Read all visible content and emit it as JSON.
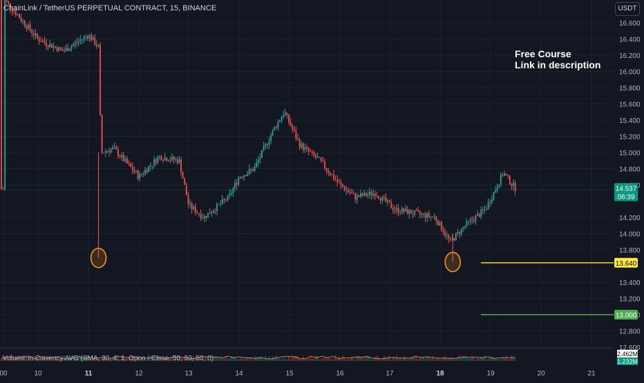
{
  "header": {
    "title": "ChainLink / TetherUS PERPETUAL CONTRACT, 15, BINANCE",
    "currency": "USDT"
  },
  "annotation": {
    "line1": "Free Course",
    "line2": "Link in description"
  },
  "volume_panel": {
    "label": "Volume in Currency AVG (SMA, 30, 4, 1, Open / Close, 50, 50, 50, 0)",
    "value_1": "2.462M",
    "value_2": "1.232M"
  },
  "colors": {
    "background": "#131722",
    "up": "#26a69a",
    "down": "#ef5350",
    "grid": "#1e222d",
    "axis_text": "#b2b5be",
    "level_yellow": "#ffeb3b",
    "level_green": "#4caf50",
    "circle": "#f7931a",
    "price_tag": "#089981"
  },
  "chart_data": {
    "type": "candlestick",
    "symbol": "LINKUSDT.P",
    "timeframe": "15",
    "y_ticks": [
      "16.600",
      "16.400",
      "16.200",
      "16.000",
      "15.800",
      "15.600",
      "15.400",
      "15.200",
      "15.000",
      "14.800",
      "14.600",
      "14.200",
      "14.000",
      "13.800",
      "13.400",
      "13.200",
      "13.000",
      "12.800",
      "12.600"
    ],
    "ylim": [
      12.6,
      16.8
    ],
    "x_ticks": [
      "00",
      "10",
      "11",
      "12",
      "13",
      "14",
      "15",
      "16",
      "17",
      "18",
      "19",
      "20",
      "21"
    ],
    "x_ticks_bold": [
      "11",
      "18"
    ],
    "last_price": "14.537",
    "countdown": "06:39",
    "horizontal_levels": [
      {
        "price": 13.64,
        "label": "13.640",
        "color": "#ffeb3b"
      },
      {
        "price": 13.0,
        "label": "13.000",
        "color": "#4caf50"
      }
    ],
    "highlighted_lows": [
      {
        "date": "11",
        "price": 13.7
      },
      {
        "date": "18",
        "price": 13.65
      }
    ],
    "price_path": [
      [
        "00",
        16.9
      ],
      [
        "10",
        16.4
      ],
      [
        "10.5",
        16.25
      ],
      [
        "11",
        16.45
      ],
      [
        "11.2",
        16.3
      ],
      [
        "11.25",
        15.0
      ],
      [
        "11.5",
        15.05
      ],
      [
        "12",
        14.7
      ],
      [
        "12.4",
        14.95
      ],
      [
        "12.8",
        14.9
      ],
      [
        "13",
        14.35
      ],
      [
        "13.3",
        14.2
      ],
      [
        "13.8",
        14.45
      ],
      [
        "14",
        14.7
      ],
      [
        "14.3",
        14.8
      ],
      [
        "14.7",
        15.3
      ],
      [
        "14.9",
        15.5
      ],
      [
        "15.2",
        15.1
      ],
      [
        "15.6",
        14.9
      ],
      [
        "16",
        14.6
      ],
      [
        "16.3",
        14.45
      ],
      [
        "16.7",
        14.5
      ],
      [
        "17.1",
        14.3
      ],
      [
        "17.5",
        14.25
      ],
      [
        "17.9",
        14.2
      ],
      [
        "18.2",
        13.9
      ],
      [
        "18.5",
        14.1
      ],
      [
        "18.9",
        14.3
      ],
      [
        "19.1",
        14.55
      ],
      [
        "19.25",
        14.75
      ],
      [
        "19.5",
        14.55
      ]
    ]
  }
}
